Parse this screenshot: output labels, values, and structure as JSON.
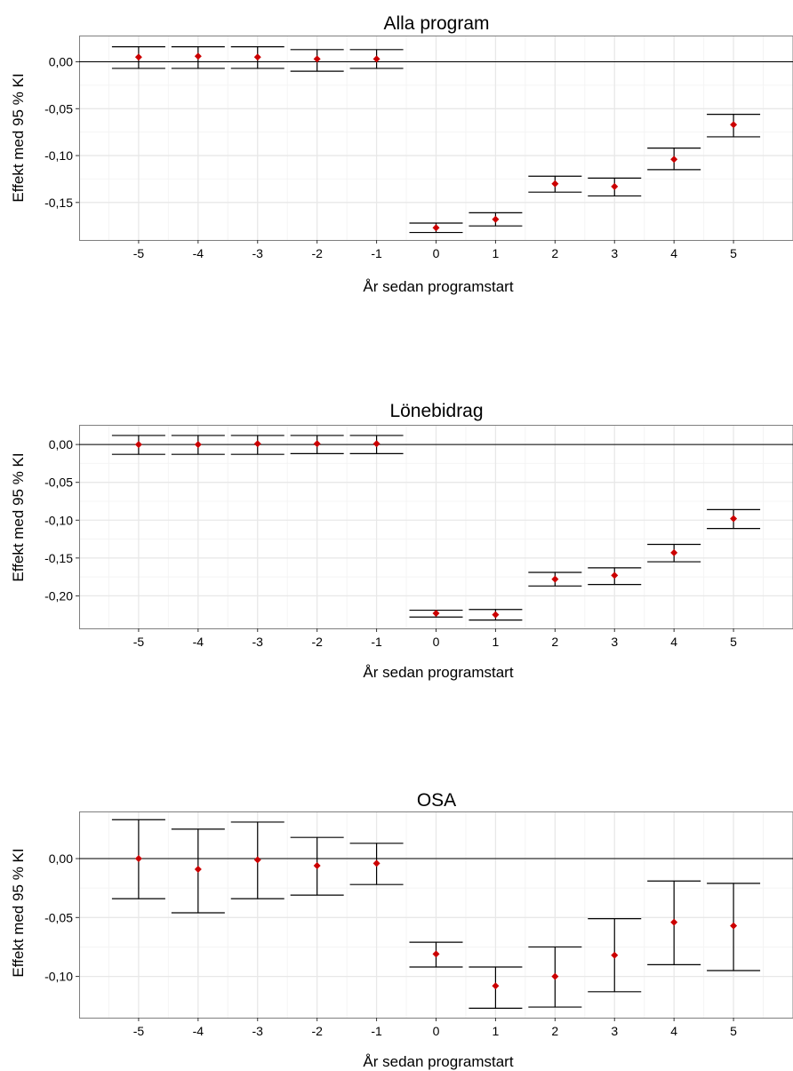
{
  "colors": {
    "point": "#cc0000",
    "errorbar": "#000000",
    "zero_line": "#000000",
    "grid_major": "#e8e8e8",
    "grid_minor": "#f4f4f4",
    "panel_border": "#7f7f7f",
    "background": "#ffffff"
  },
  "chart_data": [
    {
      "type": "scatter",
      "title": "Alla program",
      "xlabel": "År sedan programstart",
      "ylabel": "Effekt med 95 % KI",
      "grid": true,
      "x": [
        -5,
        -4,
        -3,
        -2,
        -1,
        0,
        1,
        2,
        3,
        4,
        5
      ],
      "x_tick_labels": [
        "-5",
        "-4",
        "-3",
        "-2",
        "-1",
        "0",
        "1",
        "2",
        "3",
        "4",
        "5"
      ],
      "xlim": [
        -6,
        6
      ],
      "ylim": [
        -0.19,
        0.028
      ],
      "y_ticks": [
        0,
        -0.05,
        -0.1,
        -0.15
      ],
      "y_tick_labels": [
        "0,00",
        "-0,05",
        "-0,10",
        "-0,15"
      ],
      "series": [
        {
          "estimate": [
            0.005,
            0.006,
            0.005,
            0.003,
            0.003,
            -0.177,
            -0.168,
            -0.13,
            -0.133,
            -0.104,
            -0.067
          ],
          "ci_low": [
            -0.007,
            -0.007,
            -0.007,
            -0.01,
            -0.007,
            -0.182,
            -0.175,
            -0.139,
            -0.143,
            -0.115,
            -0.08
          ],
          "ci_high": [
            0.016,
            0.016,
            0.016,
            0.013,
            0.013,
            -0.172,
            -0.161,
            -0.122,
            -0.124,
            -0.092,
            -0.056
          ]
        }
      ]
    },
    {
      "type": "scatter",
      "title": "Lönebidrag",
      "xlabel": "År sedan programstart",
      "ylabel": "Effekt med 95 % KI",
      "grid": true,
      "x": [
        -5,
        -4,
        -3,
        -2,
        -1,
        0,
        1,
        2,
        3,
        4,
        5
      ],
      "x_tick_labels": [
        "-5",
        "-4",
        "-3",
        "-2",
        "-1",
        "0",
        "1",
        "2",
        "3",
        "4",
        "5"
      ],
      "xlim": [
        -6,
        6
      ],
      "ylim": [
        -0.243,
        0.026
      ],
      "y_ticks": [
        0,
        -0.05,
        -0.1,
        -0.15,
        -0.2
      ],
      "y_tick_labels": [
        "0,00",
        "-0,05",
        "-0,10",
        "-0,15",
        "-0,20"
      ],
      "series": [
        {
          "estimate": [
            0.0,
            0.0,
            0.001,
            0.001,
            0.001,
            -0.223,
            -0.225,
            -0.178,
            -0.173,
            -0.143,
            -0.098
          ],
          "ci_low": [
            -0.013,
            -0.013,
            -0.013,
            -0.012,
            -0.012,
            -0.228,
            -0.232,
            -0.187,
            -0.185,
            -0.155,
            -0.111
          ],
          "ci_high": [
            0.012,
            0.012,
            0.012,
            0.012,
            0.012,
            -0.219,
            -0.218,
            -0.169,
            -0.163,
            -0.132,
            -0.086
          ]
        }
      ]
    },
    {
      "type": "scatter",
      "title": "OSA",
      "xlabel": "År sedan programstart",
      "ylabel": "Effekt med 95 % KI",
      "grid": true,
      "x": [
        -5,
        -4,
        -3,
        -2,
        -1,
        0,
        1,
        2,
        3,
        4,
        5
      ],
      "x_tick_labels": [
        "-5",
        "-4",
        "-3",
        "-2",
        "-1",
        "0",
        "1",
        "2",
        "3",
        "4",
        "5"
      ],
      "xlim": [
        -6,
        6
      ],
      "ylim": [
        -0.135,
        0.04
      ],
      "y_ticks": [
        0,
        -0.05,
        -0.1
      ],
      "y_tick_labels": [
        "0,00",
        "-0,05",
        "-0,10"
      ],
      "series": [
        {
          "estimate": [
            0.0,
            -0.009,
            -0.001,
            -0.006,
            -0.004,
            -0.081,
            -0.108,
            -0.1,
            -0.082,
            -0.054,
            -0.057
          ],
          "ci_low": [
            -0.034,
            -0.046,
            -0.034,
            -0.031,
            -0.022,
            -0.092,
            -0.127,
            -0.126,
            -0.113,
            -0.09,
            -0.095
          ],
          "ci_high": [
            0.033,
            0.025,
            0.031,
            0.018,
            0.013,
            -0.071,
            -0.092,
            -0.075,
            -0.051,
            -0.019,
            -0.021
          ]
        }
      ]
    }
  ]
}
